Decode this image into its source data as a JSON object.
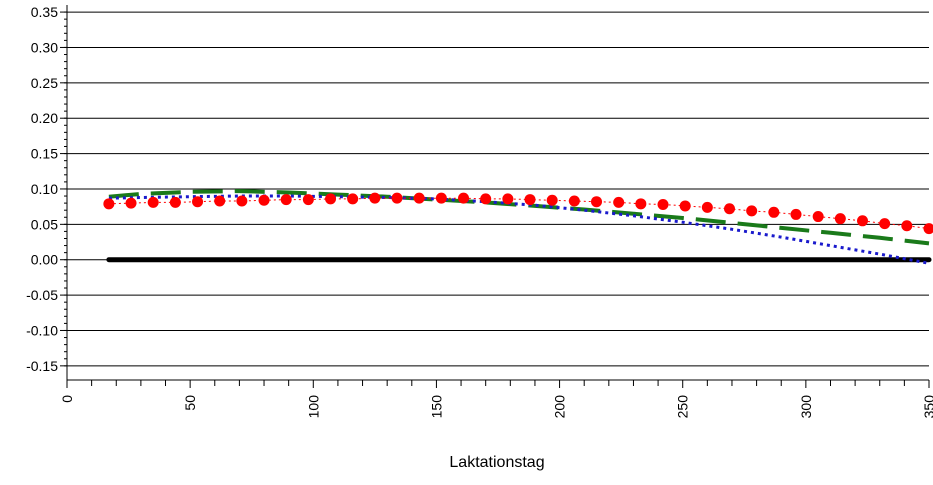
{
  "chart_data": {
    "type": "line",
    "title": "",
    "xlabel": "Laktationstag",
    "ylabel": "",
    "xlim": [
      0,
      350
    ],
    "ylim": [
      -0.17,
      0.36
    ],
    "grid": "horizontal",
    "legend": "none",
    "x_ticks": [
      0,
      50,
      100,
      150,
      200,
      250,
      300,
      350
    ],
    "x_tick_labels": [
      "0",
      "50",
      "100",
      "150",
      "200",
      "250",
      "300",
      "350"
    ],
    "y_ticks": [
      -0.15,
      -0.1,
      -0.05,
      0.0,
      0.05,
      0.1,
      0.15,
      0.2,
      0.25,
      0.3,
      0.35
    ],
    "y_tick_labels": [
      "-0.15",
      "-0.10",
      "-0.05",
      "0.00",
      "0.05",
      "0.10",
      "0.15",
      "0.20",
      "0.25",
      "0.30",
      "0.35"
    ],
    "series": [
      {
        "style": "solid-thick",
        "color": "#000000",
        "x": [
          17,
          350
        ],
        "y": [
          0.0,
          0.0
        ]
      },
      {
        "style": "dashed-long",
        "color": "#1a7a1a",
        "x": [
          17,
          30,
          50,
          70,
          90,
          110,
          130,
          150,
          170,
          190,
          210,
          230,
          250,
          270,
          290,
          310,
          330,
          350
        ],
        "y": [
          0.089,
          0.093,
          0.096,
          0.097,
          0.095,
          0.092,
          0.089,
          0.085,
          0.081,
          0.076,
          0.071,
          0.065,
          0.059,
          0.052,
          0.045,
          0.038,
          0.031,
          0.023
        ]
      },
      {
        "style": "dotted",
        "color": "#1a1acc",
        "x": [
          17,
          30,
          50,
          70,
          90,
          110,
          130,
          150,
          170,
          190,
          210,
          230,
          250,
          270,
          290,
          310,
          330,
          350
        ],
        "y": [
          0.087,
          0.088,
          0.089,
          0.09,
          0.09,
          0.089,
          0.088,
          0.086,
          0.082,
          0.077,
          0.07,
          0.062,
          0.053,
          0.043,
          0.032,
          0.02,
          0.008,
          -0.005
        ]
      },
      {
        "style": "dot-markers",
        "color": "#ff0000",
        "x": [
          17,
          26,
          35,
          44,
          53,
          62,
          71,
          80,
          89,
          98,
          107,
          116,
          125,
          134,
          143,
          152,
          161,
          170,
          179,
          188,
          197,
          206,
          215,
          224,
          233,
          242,
          251,
          260,
          269,
          278,
          287,
          296,
          305,
          314,
          323,
          332,
          341,
          350
        ],
        "y": [
          0.079,
          0.08,
          0.081,
          0.081,
          0.082,
          0.083,
          0.083,
          0.084,
          0.085,
          0.085,
          0.086,
          0.086,
          0.087,
          0.087,
          0.087,
          0.087,
          0.087,
          0.086,
          0.086,
          0.085,
          0.084,
          0.083,
          0.082,
          0.081,
          0.079,
          0.078,
          0.076,
          0.074,
          0.072,
          0.069,
          0.067,
          0.064,
          0.061,
          0.058,
          0.055,
          0.051,
          0.048,
          0.044
        ]
      }
    ]
  }
}
